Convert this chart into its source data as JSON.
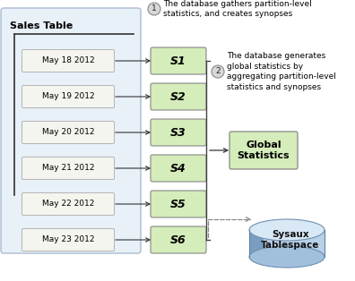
{
  "title": "Sales Table",
  "dates": [
    "May 18 2012",
    "May 19 2012",
    "May 20 2012",
    "May 21 2012",
    "May 22 2012",
    "May 23 2012"
  ],
  "synopses": [
    "S1",
    "S2",
    "S3",
    "S4",
    "S5",
    "S6"
  ],
  "annotation1_circle": "1",
  "annotation1_text": "The database gathers partition-level\nstatistics, and creates synopses",
  "annotation2_circle": "2",
  "annotation2_text": "The database generates\nglobal statistics by\naggregating partition-level\nstatistics and synopses",
  "global_stats_label": "Global\nStatistics",
  "sysaux_label": "Sysaux\nTablespace",
  "bg_color": "#ffffff",
  "table_bg_top": "#e8f0f8",
  "table_bg_bot": "#c8ddf0",
  "table_edge": "#aabbd0",
  "synopsis_fill": "#d4edba",
  "synopsis_edge": "#888888",
  "date_box_fill": "#f5f5f0",
  "date_box_edge": "#aaaaaa",
  "global_stats_fill": "#d4edba",
  "global_stats_edge": "#888888",
  "circle_fill": "#d8d8d8",
  "circle_edge": "#888888",
  "text_color": "#000000",
  "arrow_color": "#333333",
  "bracket_color": "#444444",
  "dashed_color": "#888888"
}
